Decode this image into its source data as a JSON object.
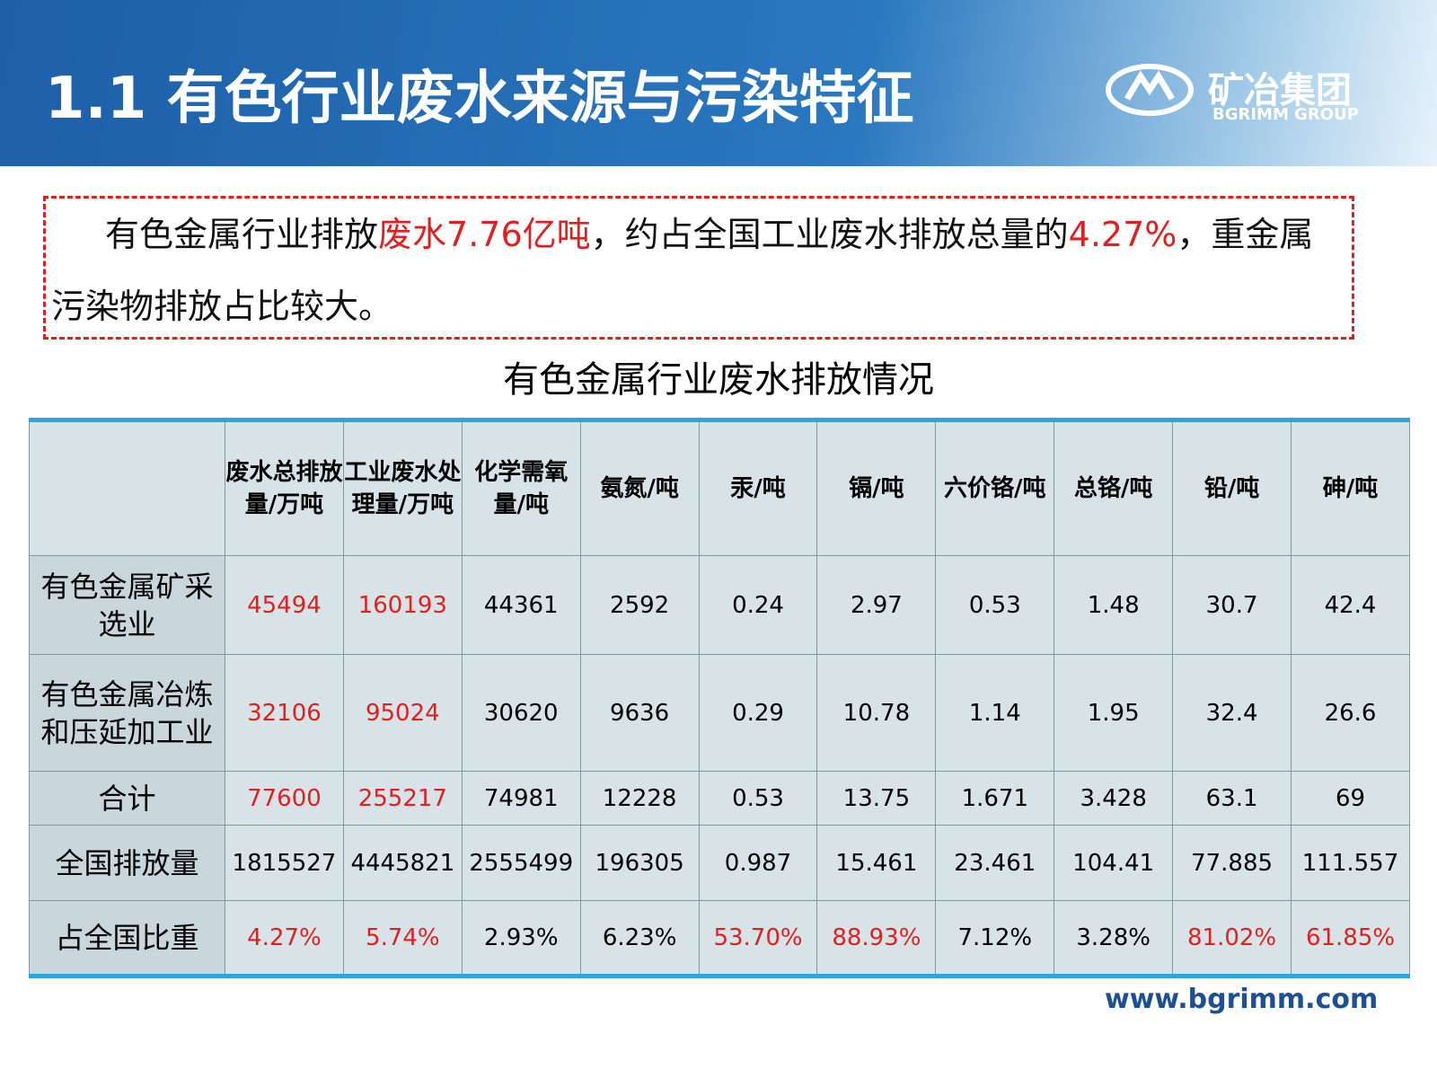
{
  "header": {
    "title": "1.1 有色行业废水来源与污染特征",
    "logo_name": "矿冶集团",
    "logo_sub": "BGRIMM GROUP"
  },
  "callout": {
    "parts": [
      {
        "text": "有色金属行业排放",
        "color": "#111"
      },
      {
        "text": "废水7.76亿吨",
        "color": "#e02020"
      },
      {
        "text": "，约占全国工业废水排放总量的",
        "color": "#111"
      },
      {
        "text": "4.27%",
        "color": "#e02020"
      },
      {
        "text": "，重金属污染物排放占比较大。",
        "color": "#111"
      }
    ]
  },
  "table": {
    "caption": "有色金属行业废水排放情况",
    "header": [
      "废水总排放量/万吨",
      "工业废水处理量/万吨",
      "化学需氧量/吨",
      "氨氮/吨",
      "汞/吨",
      "镉/吨",
      "六价铬/吨",
      "总铬/吨",
      "铅/吨",
      "砷/吨"
    ],
    "highlight_color": "#e02020",
    "rows": [
      {
        "label": "有色金属矿采选业",
        "cells": [
          "45494",
          "160193",
          "44361",
          "2592",
          "0.24",
          "2.97",
          "0.53",
          "1.48",
          "30.7",
          "42.4"
        ],
        "highlight": [
          0,
          1
        ]
      },
      {
        "label": "有色金属冶炼和压延加工业",
        "cells": [
          "32106",
          "95024",
          "30620",
          "9636",
          "0.29",
          "10.78",
          "1.14",
          "1.95",
          "32.4",
          "26.6"
        ],
        "highlight": [
          0,
          1
        ]
      },
      {
        "label": "合计",
        "cells": [
          "77600",
          "255217",
          "74981",
          "12228",
          "0.53",
          "13.75",
          "1.671",
          "3.428",
          "63.1",
          "69"
        ],
        "highlight": [
          0,
          1
        ]
      },
      {
        "label": "全国排放量",
        "cells": [
          "1815527",
          "4445821",
          "2555499",
          "196305",
          "0.987",
          "15.461",
          "23.461",
          "104.41",
          "77.885",
          "111.557"
        ],
        "highlight": []
      },
      {
        "label": "占全国比重",
        "cells": [
          "4.27%",
          "5.74%",
          "2.93%",
          "6.23%",
          "53.70%",
          "88.93%",
          "7.12%",
          "3.28%",
          "81.02%",
          "61.85%"
        ],
        "highlight": [
          0,
          1,
          4,
          5,
          8,
          9
        ]
      }
    ]
  },
  "footer": {
    "url": "www.bgrimm.com"
  }
}
